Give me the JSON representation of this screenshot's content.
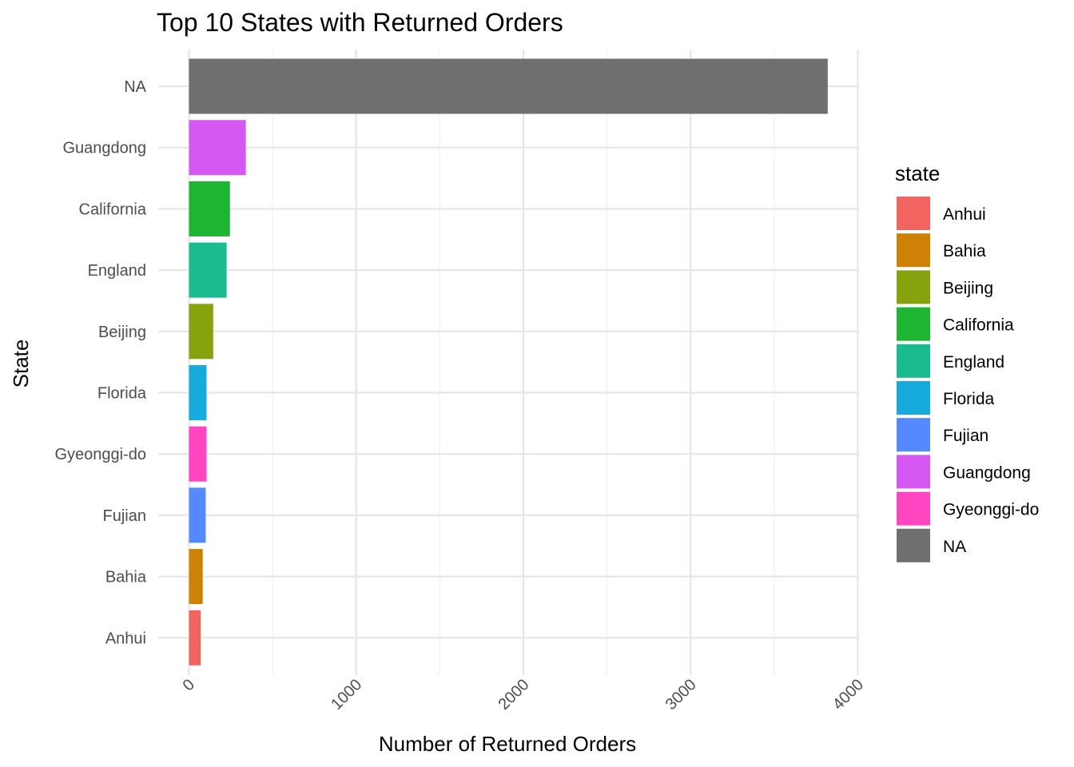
{
  "chart_data": {
    "type": "bar",
    "orientation": "horizontal",
    "title": "Top 10 States with Returned Orders",
    "xlabel": "Number of Returned Orders",
    "ylabel": "State",
    "xlim": [
      0,
      4000
    ],
    "x_ticks": [
      "0",
      "1000",
      "2000",
      "3000",
      "4000"
    ],
    "x_tick_values": [
      0,
      1000,
      2000,
      3000,
      4000
    ],
    "categories": [
      "NA",
      "Guangdong",
      "California",
      "England",
      "Beijing",
      "Florida",
      "Gyeonggi-do",
      "Fujian",
      "Bahia",
      "Anhui"
    ],
    "values": [
      3820,
      340,
      245,
      225,
      145,
      105,
      105,
      100,
      82,
      70
    ],
    "colors": [
      "#6f6f6f",
      "#d558f5",
      "#1db532",
      "#1abb8e",
      "#86a20f",
      "#17abdd",
      "#ff45bf",
      "#5489ff",
      "#cd8206",
      "#f2645f"
    ],
    "grid": true,
    "legend": {
      "title": "state",
      "position": "right",
      "items": [
        {
          "label": "Anhui",
          "color": "#f2645f"
        },
        {
          "label": "Bahia",
          "color": "#cd8206"
        },
        {
          "label": "Beijing",
          "color": "#86a20f"
        },
        {
          "label": "California",
          "color": "#1db532"
        },
        {
          "label": "England",
          "color": "#1abb8e"
        },
        {
          "label": "Florida",
          "color": "#17abdd"
        },
        {
          "label": "Fujian",
          "color": "#5489ff"
        },
        {
          "label": "Guangdong",
          "color": "#d558f5"
        },
        {
          "label": "Gyeonggi-do",
          "color": "#ff45bf"
        },
        {
          "label": "NA",
          "color": "#6f6f6f"
        }
      ]
    }
  }
}
